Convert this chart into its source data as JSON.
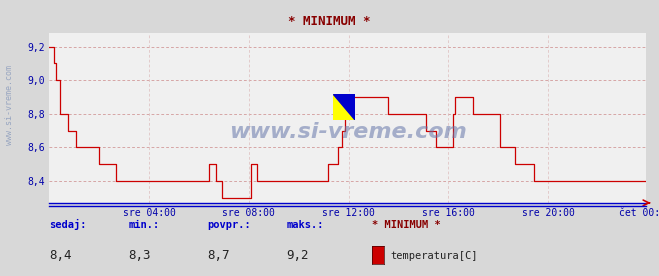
{
  "title": "* MINIMUM *",
  "title_color": "#880000",
  "bg_color": "#d8d8d8",
  "plot_bg_color": "#f0f0f0",
  "line_color": "#cc0000",
  "grid_color": "#cc8888",
  "grid_color_minor": "#ddbbbb",
  "axis_color": "#0000cc",
  "tick_color": "#0000aa",
  "ylabel_ticks": [
    8.4,
    8.6,
    8.8,
    9.0,
    9.2
  ],
  "ylim": [
    8.27,
    9.28
  ],
  "xlim": [
    0,
    287
  ],
  "xtick_positions": [
    48,
    96,
    144,
    192,
    240,
    287
  ],
  "xtick_labels": [
    "sre 04:00",
    "sre 08:00",
    "sre 12:00",
    "sre 16:00",
    "sre 20:00",
    "čet 00:00"
  ],
  "watermark": "www.si-vreme.com",
  "left_watermark": "www.si-vreme.com",
  "footer_labels": [
    "sedaj:",
    "min.:",
    "povpr.:",
    "maks.:"
  ],
  "footer_values": [
    "8,4",
    "8,3",
    "8,7",
    "9,2"
  ],
  "legend_title": "* MINIMUM *",
  "legend_item": "temperatura[C]",
  "legend_color": "#cc0000",
  "logo_yellow": "#ffff00",
  "logo_blue": "#0000cc",
  "logo_darkblue": "#000088",
  "y_data": [
    9.2,
    9.2,
    9.1,
    9.0,
    9.0,
    8.8,
    8.8,
    8.8,
    8.8,
    8.7,
    8.7,
    8.7,
    8.7,
    8.6,
    8.6,
    8.6,
    8.6,
    8.6,
    8.6,
    8.6,
    8.6,
    8.6,
    8.6,
    8.6,
    8.5,
    8.5,
    8.5,
    8.5,
    8.5,
    8.5,
    8.5,
    8.5,
    8.4,
    8.4,
    8.4,
    8.4,
    8.4,
    8.4,
    8.4,
    8.4,
    8.4,
    8.4,
    8.4,
    8.4,
    8.4,
    8.4,
    8.4,
    8.4,
    8.4,
    8.4,
    8.4,
    8.4,
    8.4,
    8.4,
    8.4,
    8.4,
    8.4,
    8.4,
    8.4,
    8.4,
    8.4,
    8.4,
    8.4,
    8.4,
    8.4,
    8.4,
    8.4,
    8.4,
    8.4,
    8.4,
    8.4,
    8.4,
    8.4,
    8.4,
    8.4,
    8.4,
    8.4,
    8.5,
    8.5,
    8.5,
    8.4,
    8.4,
    8.4,
    8.3,
    8.3,
    8.3,
    8.3,
    8.3,
    8.3,
    8.3,
    8.3,
    8.3,
    8.3,
    8.3,
    8.3,
    8.3,
    8.3,
    8.5,
    8.5,
    8.5,
    8.4,
    8.4,
    8.4,
    8.4,
    8.4,
    8.4,
    8.4,
    8.4,
    8.4,
    8.4,
    8.4,
    8.4,
    8.4,
    8.4,
    8.4,
    8.4,
    8.4,
    8.4,
    8.4,
    8.4,
    8.4,
    8.4,
    8.4,
    8.4,
    8.4,
    8.4,
    8.4,
    8.4,
    8.4,
    8.4,
    8.4,
    8.4,
    8.4,
    8.4,
    8.5,
    8.5,
    8.5,
    8.5,
    8.5,
    8.6,
    8.6,
    8.7,
    8.8,
    8.8,
    8.9,
    8.9,
    8.9,
    8.9,
    8.9,
    8.9,
    8.9,
    8.9,
    8.9,
    8.9,
    8.9,
    8.9,
    8.9,
    8.9,
    8.9,
    8.9,
    8.9,
    8.9,
    8.9,
    8.8,
    8.8,
    8.8,
    8.8,
    8.8,
    8.8,
    8.8,
    8.8,
    8.8,
    8.8,
    8.8,
    8.8,
    8.8,
    8.8,
    8.8,
    8.8,
    8.8,
    8.8,
    8.7,
    8.7,
    8.7,
    8.7,
    8.7,
    8.6,
    8.6,
    8.6,
    8.6,
    8.6,
    8.6,
    8.6,
    8.6,
    8.8,
    8.9,
    8.9,
    8.9,
    8.9,
    8.9,
    8.9,
    8.9,
    8.9,
    8.9,
    8.8,
    8.8,
    8.8,
    8.8,
    8.8,
    8.8,
    8.8,
    8.8,
    8.8,
    8.8,
    8.8,
    8.8,
    8.8,
    8.6,
    8.6,
    8.6,
    8.6,
    8.6,
    8.6,
    8.6,
    8.5,
    8.5,
    8.5,
    8.5,
    8.5,
    8.5,
    8.5,
    8.5,
    8.5,
    8.4,
    8.4,
    8.4,
    8.4,
    8.4,
    8.4,
    8.4,
    8.4,
    8.4,
    8.4,
    8.4,
    8.4,
    8.4,
    8.4,
    8.4,
    8.4,
    8.4,
    8.4,
    8.4,
    8.4,
    8.4,
    8.4,
    8.4,
    8.4,
    8.4,
    8.4,
    8.4,
    8.4,
    8.4,
    8.4,
    8.4,
    8.4,
    8.4,
    8.4,
    8.4,
    8.4,
    8.4,
    8.4,
    8.4,
    8.4,
    8.4,
    8.4,
    8.4,
    8.4,
    8.4,
    8.4,
    8.4,
    8.4,
    8.4,
    8.4,
    8.4,
    8.4,
    8.4,
    8.4,
    8.4,
    8.4,
    8.4
  ]
}
